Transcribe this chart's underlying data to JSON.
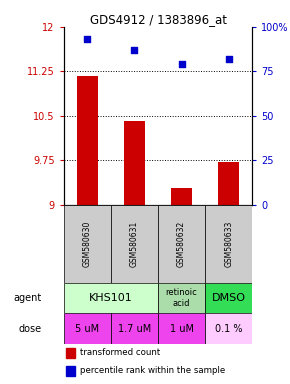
{
  "title": "GDS4912 / 1383896_at",
  "samples": [
    "GSM580630",
    "GSM580631",
    "GSM580632",
    "GSM580633"
  ],
  "bar_values": [
    11.18,
    10.42,
    9.28,
    9.72
  ],
  "scatter_values": [
    93,
    87,
    79,
    82
  ],
  "ylim_left": [
    9,
    12
  ],
  "ylim_right": [
    0,
    100
  ],
  "yticks_left": [
    9,
    9.75,
    10.5,
    11.25,
    12
  ],
  "yticks_right": [
    0,
    25,
    50,
    75,
    100
  ],
  "ytick_labels_left": [
    "9",
    "9.75",
    "10.5",
    "11.25",
    "12"
  ],
  "ytick_labels_right": [
    "0",
    "25",
    "50",
    "75",
    "100%"
  ],
  "bar_color": "#cc0000",
  "scatter_color": "#0000cc",
  "agent_data": [
    {
      "label": "KHS101",
      "start": 0,
      "end": 2,
      "color": "#ccffcc",
      "fontsize": 8
    },
    {
      "label": "retinoic\nacid",
      "start": 2,
      "end": 3,
      "color": "#aaddaa",
      "fontsize": 6
    },
    {
      "label": "DMSO",
      "start": 3,
      "end": 4,
      "color": "#33dd55",
      "fontsize": 8
    }
  ],
  "dose_data": [
    {
      "label": "5 uM",
      "color": "#ee44ee"
    },
    {
      "label": "1.7 uM",
      "color": "#ee44ee"
    },
    {
      "label": "1 uM",
      "color": "#ee44ee"
    },
    {
      "label": "0.1 %",
      "color": "#ffccff"
    }
  ],
  "sample_bg_color": "#cccccc",
  "legend_bar_color": "#cc0000",
  "legend_scatter_color": "#0000cc",
  "hlines": [
    9.75,
    10.5,
    11.25
  ]
}
